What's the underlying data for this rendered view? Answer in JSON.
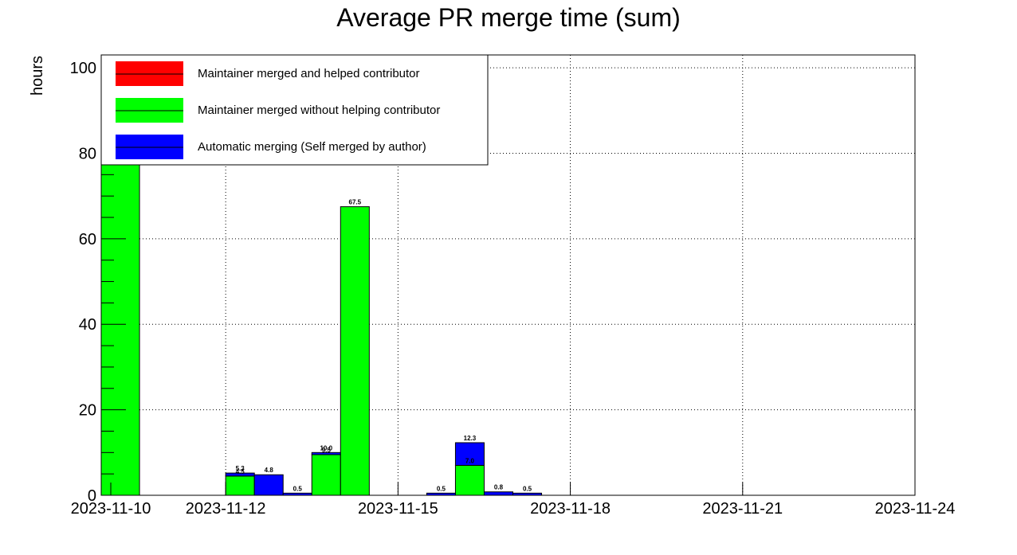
{
  "chart_data": {
    "type": "bar",
    "stacked": true,
    "title": "Average PR merge time (sum)",
    "ylabel": "hours",
    "xlabel": "",
    "ylim": [
      0,
      103
    ],
    "xlim": [
      "2023-11-09T20:00",
      "2023-11-24T00:00"
    ],
    "grid": true,
    "legend_position": "top-left",
    "x_tick_labels": [
      "2023-11-10",
      "2023-11-12",
      "2023-11-15",
      "2023-11-18",
      "2023-11-21",
      "2023-11-24"
    ],
    "y_ticks": [
      0,
      20,
      40,
      60,
      80,
      100
    ],
    "legend": [
      {
        "name": "Maintainer merged and helped contributor",
        "color": "#ff0000"
      },
      {
        "name": "Maintainer merged without helping contributor",
        "color": "#00ff00"
      },
      {
        "name": "Automatic merging (Self merged by author)",
        "color": "#0000ff"
      }
    ],
    "bars": [
      {
        "start": "2023-11-09T20:00",
        "end": "2023-11-10T12:00",
        "green": 103,
        "blue": 0,
        "total_label": "",
        "green_label": ""
      },
      {
        "start": "2023-11-12T00:00",
        "end": "2023-11-12T12:00",
        "green": 4.5,
        "blue": 0.7,
        "total_label": "5.3",
        "green_label": "4.5"
      },
      {
        "start": "2023-11-12T12:00",
        "end": "2023-11-13T00:00",
        "green": 0,
        "blue": 4.8,
        "total_label": "4.8",
        "green_label": ""
      },
      {
        "start": "2023-11-13T00:00",
        "end": "2023-11-13T12:00",
        "green": 0,
        "blue": 0.5,
        "total_label": "0.5",
        "green_label": ""
      },
      {
        "start": "2023-11-13T12:00",
        "end": "2023-11-14T00:00",
        "green": 9.5,
        "blue": 0.5,
        "total_label": "10.0",
        "green_label": "9.5"
      },
      {
        "start": "2023-11-14T00:00",
        "end": "2023-11-14T12:00",
        "green": 67.5,
        "blue": 0,
        "total_label": "67.5",
        "green_label": ""
      },
      {
        "start": "2023-11-15T12:00",
        "end": "2023-11-16T00:00",
        "green": 0,
        "blue": 0.5,
        "total_label": "0.5",
        "green_label": ""
      },
      {
        "start": "2023-11-16T00:00",
        "end": "2023-11-16T12:00",
        "green": 7.0,
        "blue": 5.3,
        "total_label": "12.3",
        "green_label": "7.0"
      },
      {
        "start": "2023-11-16T12:00",
        "end": "2023-11-17T00:00",
        "green": 0,
        "blue": 0.8,
        "total_label": "0.8",
        "green_label": ""
      },
      {
        "start": "2023-11-17T00:00",
        "end": "2023-11-17T12:00",
        "green": 0,
        "blue": 0.5,
        "total_label": "0.5",
        "green_label": ""
      }
    ]
  }
}
